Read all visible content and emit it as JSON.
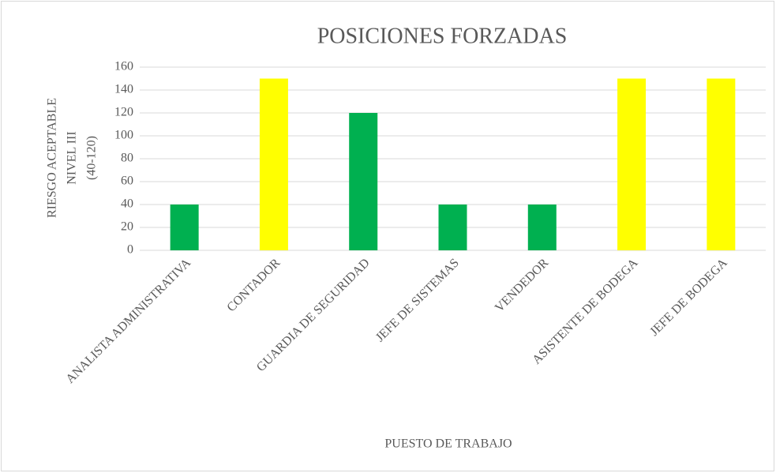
{
  "chart_data": {
    "type": "bar",
    "title": "POSICIONES FORZADAS",
    "xlabel": "PUESTO DE TRABAJO",
    "ylabel": [
      "RIESGO ACEPTABLE",
      "NIVEL  III",
      "(40-120)"
    ],
    "categories": [
      "ANALISTA ADMINISTRATIVA",
      "CONTADOR",
      "GUARDIA DE SEGURIDAD",
      "JEFE DE SISTEMAS",
      "VENDEDOR",
      "ASISTENTE DE BODEGA",
      "JEFE DE BODEGA"
    ],
    "values": [
      40,
      150,
      120,
      40,
      40,
      150,
      150
    ],
    "colors": [
      "#00b050",
      "#ffff00",
      "#00b050",
      "#00b050",
      "#00b050",
      "#ffff00",
      "#ffff00"
    ],
    "ylim": [
      0,
      160
    ],
    "yticks": [
      0,
      20,
      40,
      60,
      80,
      100,
      120,
      140,
      160
    ],
    "grid": true
  }
}
